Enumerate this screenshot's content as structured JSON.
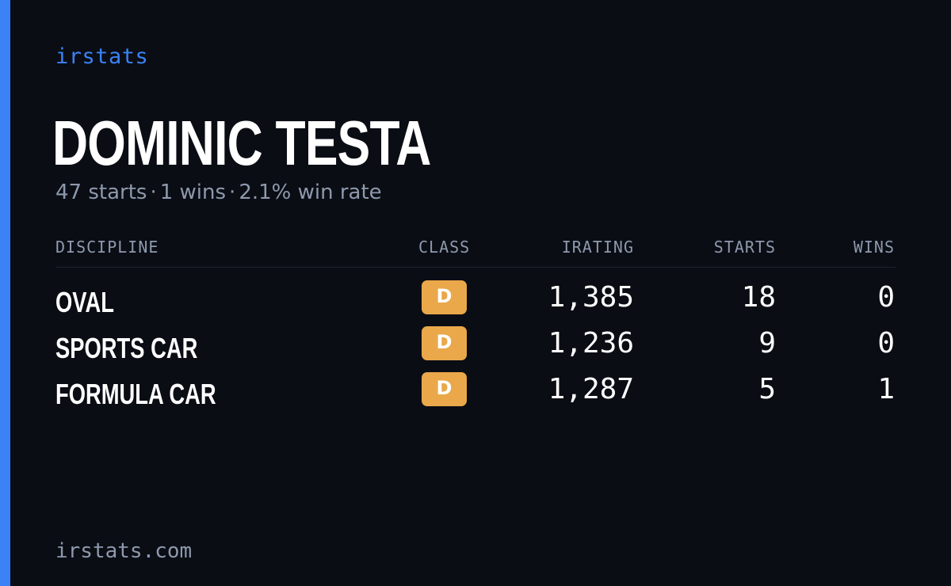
{
  "brand": "irstats",
  "driver": {
    "name": "DOMINIC TESTA"
  },
  "summary": {
    "starts": "47 starts",
    "wins": "1 wins",
    "win_rate": "2.1% win rate",
    "separator": "·"
  },
  "table": {
    "headers": {
      "discipline": "DISCIPLINE",
      "class": "CLASS",
      "irating": "IRATING",
      "starts": "STARTS",
      "wins": "WINS"
    },
    "rows": [
      {
        "discipline": "OVAL",
        "class": "D",
        "irating": "1,385",
        "starts": "18",
        "wins": "0"
      },
      {
        "discipline": "SPORTS CAR",
        "class": "D",
        "irating": "1,236",
        "starts": "9",
        "wins": "0"
      },
      {
        "discipline": "FORMULA CAR",
        "class": "D",
        "irating": "1,287",
        "starts": "5",
        "wins": "1"
      }
    ]
  },
  "footer": {
    "site": "irstats.com"
  },
  "colors": {
    "accent": "#3b82f6",
    "background": "#0a0d14",
    "class_d_badge": "#eaa84a",
    "muted_text": "#8e99ad"
  }
}
